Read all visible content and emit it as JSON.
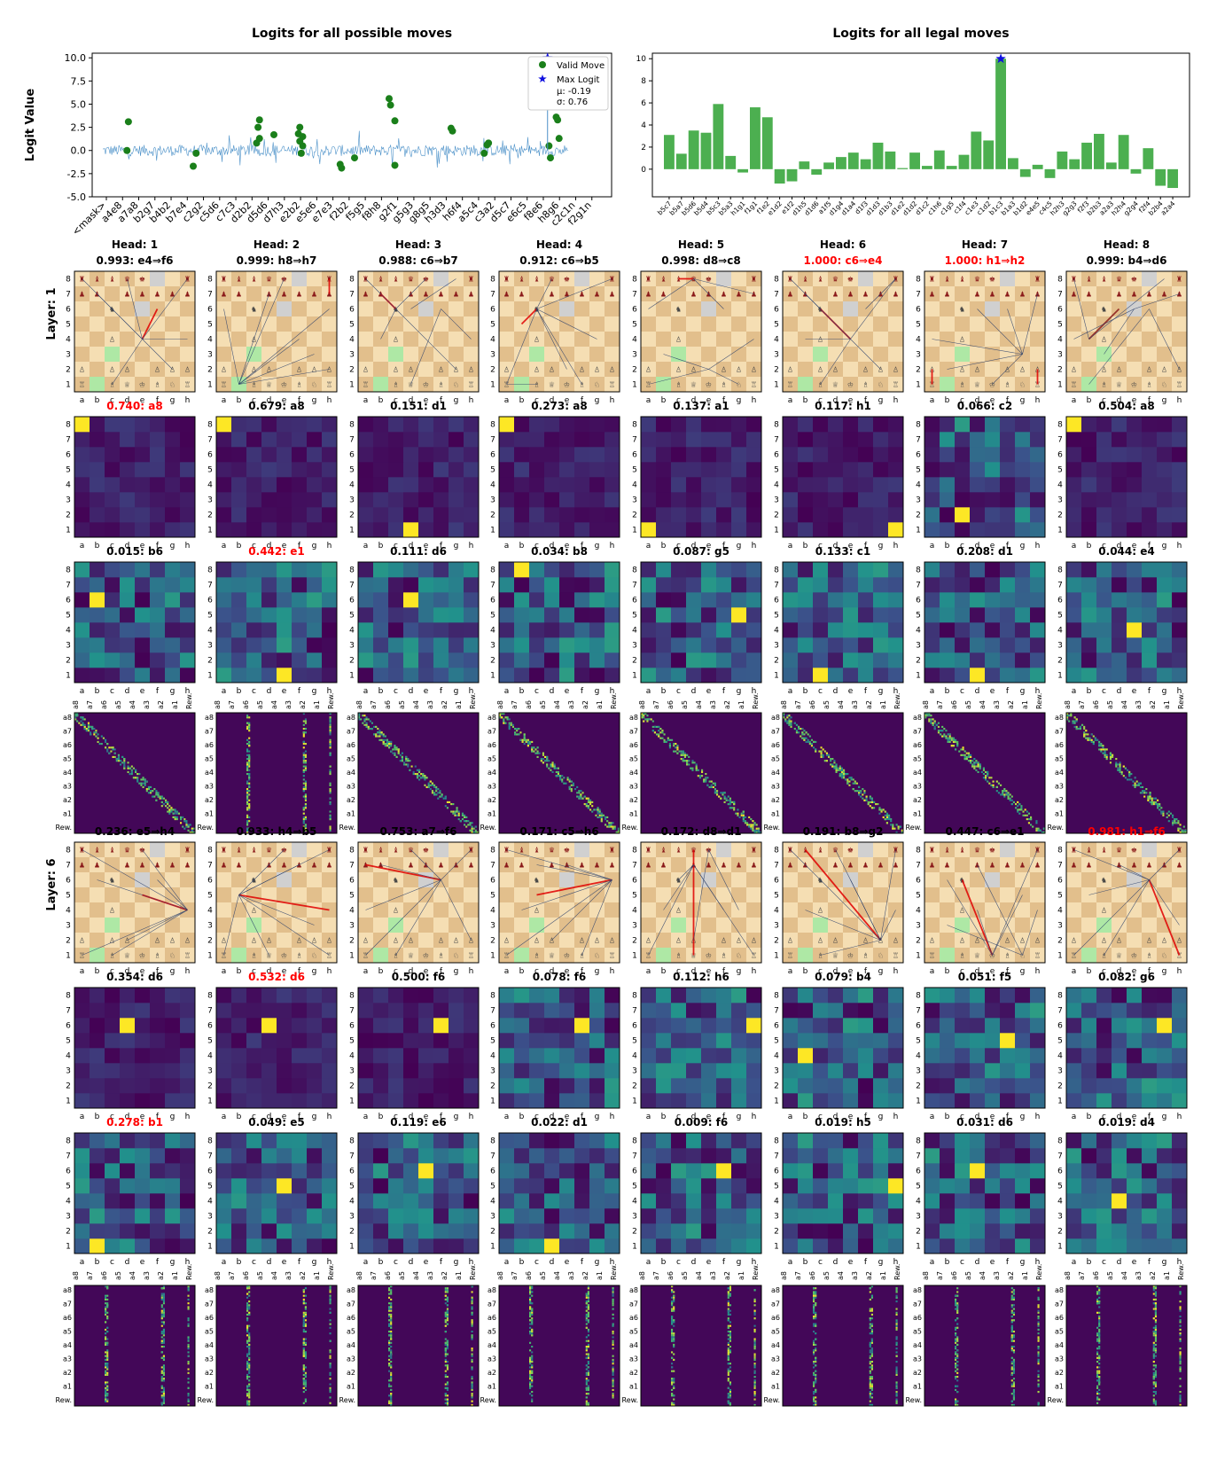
{
  "top_charts": [
    {
      "type": "line",
      "title": "Logits for all possible moves",
      "ylabel": "Logit Value",
      "ylim": [
        -5.0,
        10.5
      ],
      "yticks": [
        "-5.0",
        "-2.5",
        "0.0",
        "2.5",
        "5.0",
        "7.5",
        "10.0"
      ],
      "x_tick_labels": [
        "<mask>",
        "a4e8",
        "a7a8",
        "b2g7",
        "b4b2",
        "b7e4",
        "c2g2",
        "c5d6",
        "c7c3",
        "d2b2",
        "d5d6",
        "d7h3",
        "e2b2",
        "e5e6",
        "e7e3",
        "f2b2",
        "f5g5",
        "f8h8",
        "g2f1",
        "g5g3",
        "g8g5",
        "h3d3",
        "h6f4",
        "a5c4",
        "c3a2",
        "d5c7",
        "e6c5",
        "f8e6",
        "h8g6",
        "c2c1n",
        "f2g1n"
      ],
      "legend": {
        "valid": "Valid Move",
        "max": "Max Logit",
        "mu": "μ: -0.19",
        "sigma": "σ: 0.76"
      },
      "valid_points": [
        [
          0.95,
          3.1
        ],
        [
          0.9,
          0.0
        ],
        [
          3.3,
          -0.3
        ],
        [
          3.2,
          -1.7
        ],
        [
          5.5,
          3.3
        ],
        [
          5.45,
          2.5
        ],
        [
          5.5,
          1.3
        ],
        [
          5.4,
          0.8
        ],
        [
          6.0,
          1.7
        ],
        [
          6.9,
          2.5
        ],
        [
          6.85,
          1.8
        ],
        [
          7.0,
          1.5
        ],
        [
          6.9,
          1.0
        ],
        [
          7.0,
          0.5
        ],
        [
          6.95,
          -0.3
        ],
        [
          8.3,
          -1.5
        ],
        [
          8.35,
          -1.9
        ],
        [
          8.8,
          -0.8
        ],
        [
          10.0,
          5.6
        ],
        [
          10.05,
          4.9
        ],
        [
          10.2,
          3.2
        ],
        [
          10.2,
          -1.6
        ],
        [
          12.15,
          2.4
        ],
        [
          12.2,
          2.1
        ],
        [
          13.3,
          -0.3
        ],
        [
          13.4,
          0.6
        ],
        [
          13.45,
          0.8
        ],
        [
          15.55,
          0.5
        ],
        [
          15.6,
          -0.8
        ],
        [
          15.8,
          6.0
        ],
        [
          15.8,
          3.6
        ],
        [
          15.85,
          3.3
        ],
        [
          15.9,
          1.3
        ]
      ],
      "max_point": [
        15.5,
        10.0
      ]
    },
    {
      "type": "bar",
      "title": "Logits for all legal moves",
      "ylim": [
        -2.5,
        10.5
      ],
      "yticks": [
        "0",
        "2",
        "4",
        "6",
        "8",
        "10"
      ],
      "categories": [
        "b5c7",
        "b5a7",
        "b5d6",
        "b5d4",
        "b5c3",
        "b5a3",
        "h1g1",
        "f1g1",
        "f1e2",
        "e1d2",
        "e1f2",
        "d1h5",
        "d1d6",
        "a1f5",
        "d1g4",
        "d1a4",
        "d1f3",
        "d1d3",
        "d1b3",
        "d1e2",
        "d1d2",
        "d1c2",
        "c1h6",
        "c1g5",
        "c1f4",
        "c1e3",
        "c1d2",
        "b1c3",
        "b1a3",
        "b1d2",
        "e4e5",
        "c4c5",
        "h2h3",
        "g2g3",
        "f2f3",
        "b2b3",
        "a2a3",
        "h2h4",
        "g2g4",
        "f2f4",
        "b2b4",
        "a2a4"
      ],
      "x_tick_labels": [
        "b5c7",
        "b5a7",
        "b5d6",
        "b5d4",
        "b5c3",
        "b5a3",
        "h1g1",
        "f1g1",
        "f1e2",
        "e1d2",
        "e1f2",
        "d1h5",
        "d1d6",
        "a1f5",
        "d1g4",
        "d1a4",
        "d1f3",
        "d1d3",
        "d1b3",
        "d1e2",
        "d1d2",
        "d1c2",
        "c1h6",
        "c1g5",
        "c1f4",
        "c1e3",
        "c1d2",
        "b1c3",
        "b1a3",
        "b1d2",
        "e4e5",
        "c4c5",
        "h2h3",
        "g2g3",
        "f2f3",
        "b2b3",
        "a2a3",
        "h2h4",
        "g2g4",
        "f2f4",
        "b2b4",
        "a2a4"
      ],
      "values": [
        3.1,
        1.4,
        3.5,
        3.3,
        5.9,
        1.2,
        -0.3,
        5.6,
        4.7,
        -1.3,
        -1.1,
        0.7,
        -0.5,
        0.6,
        1.1,
        1.5,
        0.9,
        2.4,
        1.6,
        0.1,
        1.5,
        0.3,
        1.7,
        0.3,
        1.3,
        3.4,
        2.6,
        10.0,
        1.0,
        -0.7,
        0.4,
        -0.8,
        1.6,
        0.9,
        2.4,
        3.2,
        0.6,
        3.1,
        -0.4,
        1.9,
        -1.5,
        -1.7
      ]
    }
  ],
  "layer_labels": [
    "Layer: 1",
    "Layer: 6"
  ],
  "file_labels": [
    "a",
    "b",
    "c",
    "d",
    "e",
    "f",
    "g",
    "h"
  ],
  "rank_labels": [
    "1",
    "2",
    "3",
    "4",
    "5",
    "6",
    "7",
    "8"
  ],
  "matrix_x_labels": [
    "a8",
    "a7",
    "a6",
    "a5",
    "a4",
    "a3",
    "a2",
    "a1",
    "Rew."
  ],
  "matrix_y_labels": [
    "a8",
    "a7",
    "a6",
    "a5",
    "a4",
    "a3",
    "a2",
    "a1",
    "Rew."
  ],
  "layers": [
    {
      "heads": [
        {
          "head": "Head: 1",
          "title": "0.993: e4⇒f6",
          "red": false
        },
        {
          "head": "Head: 2",
          "title": "0.999: h8⇒h7",
          "red": false
        },
        {
          "head": "Head: 3",
          "title": "0.988: c6⇒b7",
          "red": false
        },
        {
          "head": "Head: 4",
          "title": "0.912: c6⇒b5",
          "red": false
        },
        {
          "head": "Head: 5",
          "title": "0.998: d8⇒c8",
          "red": false
        },
        {
          "head": "Head: 6",
          "title": "1.000: c6⇒e4",
          "red": true
        },
        {
          "head": "Head: 7",
          "title": "1.000: h1⇒h2",
          "red": true
        },
        {
          "head": "Head: 8",
          "title": "0.999: b4⇒d6",
          "red": false
        }
      ],
      "heat_row_a": [
        {
          "title": "0.740: a8",
          "red": true
        },
        {
          "title": "0.679: a8",
          "red": false
        },
        {
          "title": "0.151: d1",
          "red": false
        },
        {
          "title": "0.273: a8",
          "red": false
        },
        {
          "title": "0.137: a1",
          "red": false
        },
        {
          "title": "0.117: h1",
          "red": false
        },
        {
          "title": "0.066: c2",
          "red": false
        },
        {
          "title": "0.504: a8",
          "red": false
        }
      ],
      "heat_row_b": [
        {
          "title": "0.015: b6",
          "red": false
        },
        {
          "title": "0.442: e1",
          "red": true
        },
        {
          "title": "0.111: d6",
          "red": false
        },
        {
          "title": "0.034: b8",
          "red": false
        },
        {
          "title": "0.087: g5",
          "red": false
        },
        {
          "title": "0.133: c1",
          "red": false
        },
        {
          "title": "0.208: d1",
          "red": false
        },
        {
          "title": "0.044: e4",
          "red": false
        }
      ]
    },
    {
      "heads": [
        {
          "head": "",
          "title": "0.236: e5⇒h4",
          "red": false
        },
        {
          "head": "",
          "title": "0.933: h4⇒b5",
          "red": false
        },
        {
          "head": "",
          "title": "0.753: a7⇒f6",
          "red": false
        },
        {
          "head": "",
          "title": "0.171: c5⇒h6",
          "red": false
        },
        {
          "head": "",
          "title": "0.172: d8⇒d1",
          "red": false
        },
        {
          "head": "",
          "title": "0.191: b8⇒g2",
          "red": false
        },
        {
          "head": "",
          "title": "0.447: c6⇒e1",
          "red": false
        },
        {
          "head": "",
          "title": "0.981: h1⇒f6",
          "red": true
        }
      ],
      "heat_row_a": [
        {
          "title": "0.354: d6",
          "red": false
        },
        {
          "title": "0.532: d6",
          "red": true
        },
        {
          "title": "0.500: f6",
          "red": false
        },
        {
          "title": "0.078: f6",
          "red": false
        },
        {
          "title": "0.112: h6",
          "red": false
        },
        {
          "title": "0.079: b4",
          "red": false
        },
        {
          "title": "0.051: f5",
          "red": false
        },
        {
          "title": "0.082: g6",
          "red": false
        }
      ],
      "heat_row_b": [
        {
          "title": "0.278: b1",
          "red": true
        },
        {
          "title": "0.049: e5",
          "red": false
        },
        {
          "title": "0.119: e6",
          "red": false
        },
        {
          "title": "0.022: d1",
          "red": false
        },
        {
          "title": "0.009: f6",
          "red": false
        },
        {
          "title": "0.019: h5",
          "red": false
        },
        {
          "title": "0.031: d6",
          "red": false
        },
        {
          "title": "0.019: d4",
          "red": false
        }
      ]
    }
  ],
  "colors": {
    "valid": "#1a7f1a",
    "max": "#1010e0",
    "bar": "#4caf50",
    "line": "#4a90c8",
    "highlight": "#ff0000"
  }
}
